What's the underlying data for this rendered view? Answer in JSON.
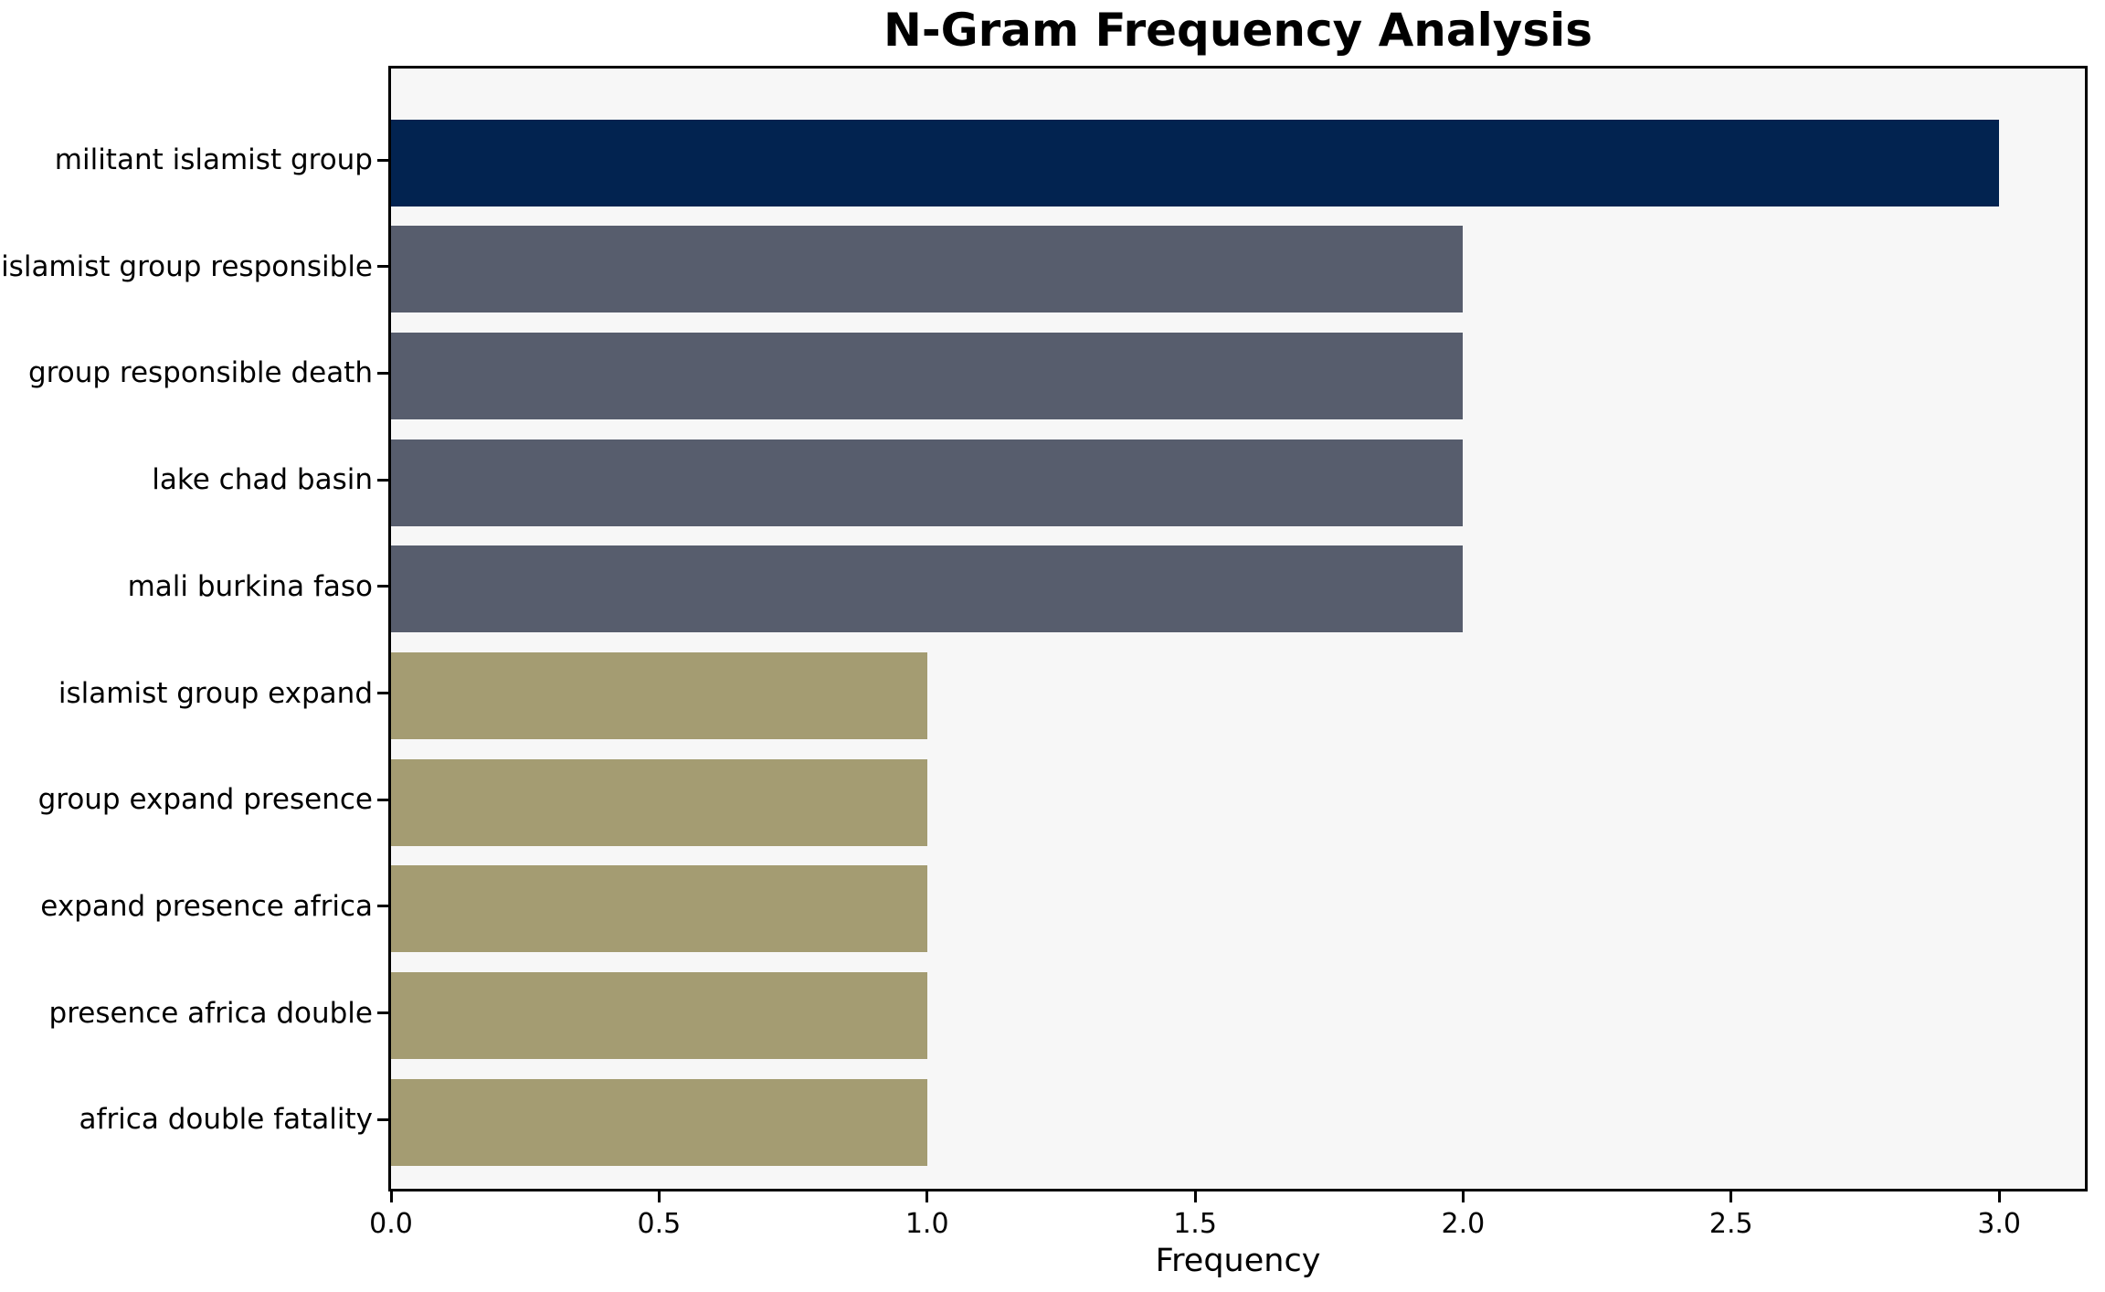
{
  "chart_data": {
    "type": "bar",
    "orientation": "horizontal",
    "title": "N-Gram Frequency Analysis",
    "xlabel": "Frequency",
    "ylabel": "",
    "categories": [
      "militant islamist group",
      "islamist group responsible",
      "group responsible death",
      "lake chad basin",
      "mali burkina faso",
      "islamist group expand",
      "group expand presence",
      "expand presence africa",
      "presence africa double",
      "africa double fatality"
    ],
    "values": [
      3,
      2,
      2,
      2,
      2,
      1,
      1,
      1,
      1,
      1
    ],
    "bar_colors": [
      "#022350",
      "#575d6d",
      "#575d6d",
      "#575d6d",
      "#575d6d",
      "#a49c72",
      "#a49c72",
      "#a49c72",
      "#a49c72",
      "#a49c72"
    ],
    "xlim": [
      0,
      3.16
    ],
    "xticks": [
      0.0,
      0.5,
      1.0,
      1.5,
      2.0,
      2.5,
      3.0
    ],
    "xtick_labels": [
      "0.0",
      "0.5",
      "1.0",
      "1.5",
      "2.0",
      "2.5",
      "3.0"
    ],
    "grid": false,
    "legend": false,
    "plot_background": "#f7f7f7",
    "figure_background": "#ffffff",
    "spine_color": "#000000"
  }
}
